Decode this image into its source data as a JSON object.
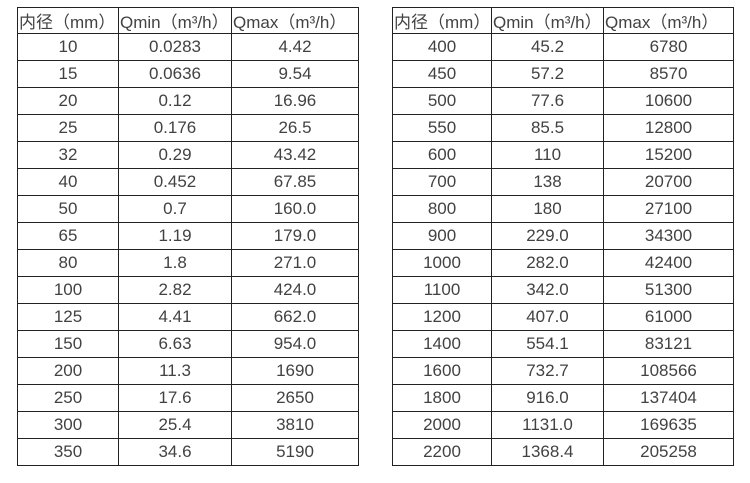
{
  "page": {
    "background_color": "#ffffff",
    "border_color": "#222222",
    "text_color": "#424242"
  },
  "chart_data": [
    {
      "type": "table",
      "title": "",
      "columns": [
        "内径（mm）",
        "Qmin（m³/h）",
        "Qmax（m³/h）"
      ],
      "rows": [
        [
          "10",
          "0.0283",
          "4.42"
        ],
        [
          "15",
          "0.0636",
          "9.54"
        ],
        [
          "20",
          "0.12",
          "16.96"
        ],
        [
          "25",
          "0.176",
          "26.5"
        ],
        [
          "32",
          "0.29",
          "43.42"
        ],
        [
          "40",
          "0.452",
          "67.85"
        ],
        [
          "50",
          "0.7",
          "160.0"
        ],
        [
          "65",
          "1.19",
          "179.0"
        ],
        [
          "80",
          "1.8",
          "271.0"
        ],
        [
          "100",
          "2.82",
          "424.0"
        ],
        [
          "125",
          "4.41",
          "662.0"
        ],
        [
          "150",
          "6.63",
          "954.0"
        ],
        [
          "200",
          "11.3",
          "1690"
        ],
        [
          "250",
          "17.6",
          "2650"
        ],
        [
          "300",
          "25.4",
          "3810"
        ],
        [
          "350",
          "34.6",
          "5190"
        ]
      ]
    },
    {
      "type": "table",
      "title": "",
      "columns": [
        "内径（mm）",
        "Qmin（m³/h）",
        "Qmax（m³/h）"
      ],
      "rows": [
        [
          "400",
          "45.2",
          "6780"
        ],
        [
          "450",
          "57.2",
          "8570"
        ],
        [
          "500",
          "77.6",
          "10600"
        ],
        [
          "550",
          "85.5",
          "12800"
        ],
        [
          "600",
          "110",
          "15200"
        ],
        [
          "700",
          "138",
          "20700"
        ],
        [
          "800",
          "180",
          "27100"
        ],
        [
          "900",
          "229.0",
          "34300"
        ],
        [
          "1000",
          "282.0",
          "42400"
        ],
        [
          "1100",
          "342.0",
          "51300"
        ],
        [
          "1200",
          "407.0",
          "61000"
        ],
        [
          "1400",
          "554.1",
          "83121"
        ],
        [
          "1600",
          "732.7",
          "108566"
        ],
        [
          "1800",
          "916.0",
          "137404"
        ],
        [
          "2000",
          "1131.0",
          "169635"
        ],
        [
          "2200",
          "1368.4",
          "205258"
        ]
      ]
    }
  ]
}
